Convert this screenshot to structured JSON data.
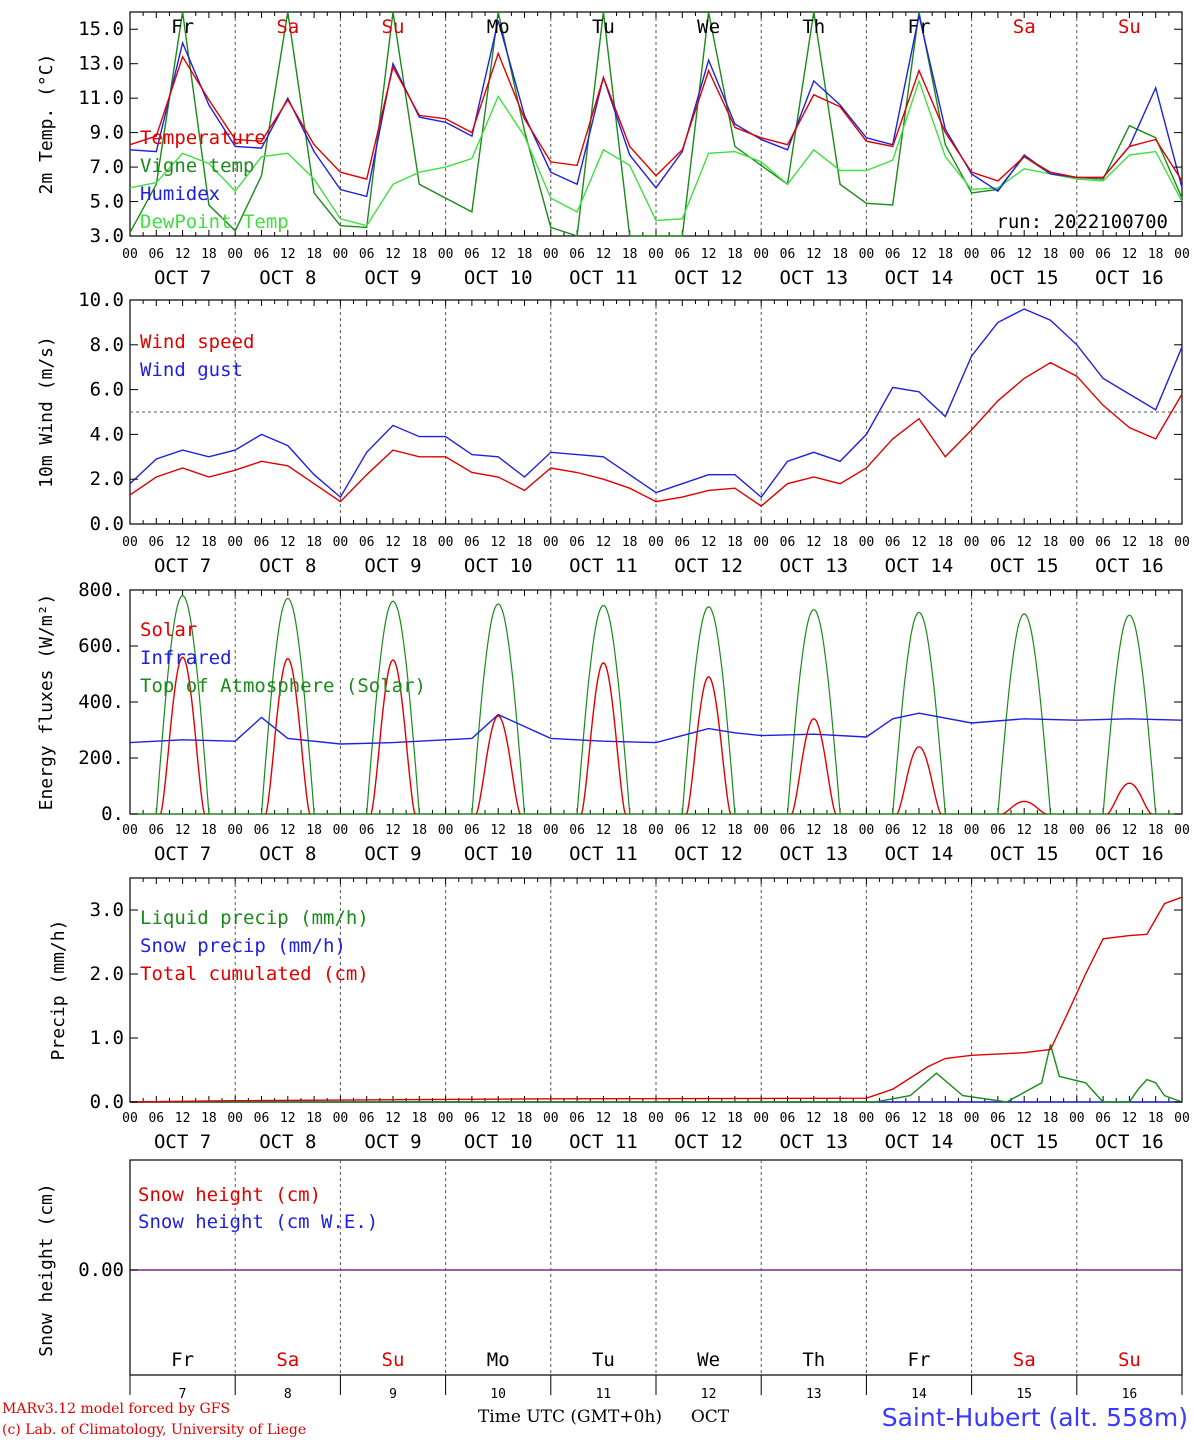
{
  "x_axis": {
    "hour_labels": [
      "00",
      "06",
      "12",
      "18"
    ],
    "month": "OCT",
    "days": [
      "7",
      "8",
      "9",
      "10",
      "11",
      "12",
      "13",
      "14",
      "15",
      "16"
    ],
    "weekdays": [
      {
        "label": "Fr",
        "color": "#000000"
      },
      {
        "label": "Sa",
        "color": "#e00000"
      },
      {
        "label": "Su",
        "color": "#e00000"
      },
      {
        "label": "Mo",
        "color": "#000000"
      },
      {
        "label": "Tu",
        "color": "#000000"
      },
      {
        "label": "We",
        "color": "#000000"
      },
      {
        "label": "Th",
        "color": "#000000"
      },
      {
        "label": "Fr",
        "color": "#000000"
      },
      {
        "label": "Sa",
        "color": "#e00000"
      },
      {
        "label": "Su",
        "color": "#e00000"
      }
    ],
    "title": "Time UTC (GMT+0h)",
    "month_bottom": "OCT"
  },
  "footer": {
    "model": "MARv3.12 model forced by GFS",
    "credit": "(c) Lab. of Climatology, University of Liege",
    "station": "Saint-Hubert (alt. 558m)"
  },
  "chart_data": [
    {
      "type": "line",
      "ylabel": "2m Temp. (°C)",
      "ylim": [
        3.0,
        16.0
      ],
      "yticks": [
        "3.0",
        "5.0",
        "7.0",
        "9.0",
        "11.0",
        "13.0",
        "15.0"
      ],
      "annotation": "run: 2022100700",
      "x_unit": "hours since OCT 7 00 UTC",
      "x": [
        0,
        6,
        12,
        18,
        24,
        30,
        36,
        42,
        48,
        54,
        60,
        66,
        72,
        78,
        84,
        90,
        96,
        102,
        108,
        114,
        120,
        126,
        132,
        138,
        144,
        150,
        156,
        162,
        168,
        174,
        180,
        186,
        192,
        198,
        204,
        210,
        216,
        222,
        228,
        234,
        240
      ],
      "series": [
        {
          "name": "Temperature",
          "color": "#e00000",
          "values": [
            8.3,
            8.8,
            13.4,
            10.9,
            8.6,
            8.5,
            10.9,
            8.3,
            6.7,
            6.3,
            12.8,
            10.0,
            9.8,
            9.0,
            13.6,
            9.8,
            7.3,
            7.1,
            12.2,
            8.2,
            6.5,
            8.0,
            12.6,
            9.3,
            8.7,
            8.3,
            11.2,
            10.5,
            8.5,
            8.2,
            12.6,
            9.0,
            6.7,
            6.2,
            7.6,
            6.7,
            6.4,
            6.4,
            8.2,
            8.6,
            6.2
          ]
        },
        {
          "name": "Vigne temp",
          "color": "#1a8a1a",
          "values": [
            3.2,
            6.0,
            16.5,
            4.8,
            3.3,
            6.5,
            16.5,
            5.5,
            3.6,
            3.5,
            16.5,
            6.0,
            5.2,
            4.4,
            16.5,
            9.1,
            3.5,
            2.8,
            16.5,
            3.0,
            2.7,
            2.7,
            16.5,
            8.2,
            7.1,
            6.0,
            16.0,
            6.0,
            4.9,
            4.8,
            16.5,
            8.3,
            5.5,
            5.7,
            7.6,
            6.6,
            6.4,
            6.3,
            9.4,
            8.7,
            5.2
          ]
        },
        {
          "name": "Humidex",
          "color": "#2020e0",
          "values": [
            8.0,
            7.9,
            14.2,
            10.6,
            8.2,
            8.1,
            11.0,
            7.9,
            5.7,
            5.3,
            13.0,
            9.9,
            9.6,
            8.8,
            15.5,
            10.0,
            6.7,
            6.0,
            12.2,
            7.7,
            5.8,
            7.9,
            13.2,
            9.5,
            8.6,
            8.0,
            12.0,
            10.6,
            8.7,
            8.3,
            15.8,
            9.2,
            6.6,
            5.6,
            7.7,
            6.6,
            6.4,
            6.4,
            8.2,
            11.6,
            5.8
          ]
        },
        {
          "name": "DewPoint Temp",
          "color": "#40e040",
          "values": [
            5.8,
            6.1,
            7.8,
            7.2,
            5.6,
            7.6,
            7.8,
            6.3,
            4.0,
            3.6,
            6.0,
            6.7,
            7.0,
            7.5,
            11.1,
            8.8,
            5.2,
            4.4,
            8.0,
            7.1,
            3.9,
            4.0,
            7.8,
            7.9,
            7.3,
            6.0,
            8.0,
            6.8,
            6.8,
            7.4,
            12.0,
            7.6,
            5.7,
            5.8,
            6.9,
            6.6,
            6.3,
            6.2,
            7.7,
            7.9,
            5.0
          ]
        }
      ]
    },
    {
      "type": "line",
      "ylabel": "10m Wind (m/s)",
      "ylim": [
        0.0,
        10.0
      ],
      "yticks": [
        "0.0",
        "2.0",
        "4.0",
        "6.0",
        "8.0",
        "10.0"
      ],
      "x_unit": "hours since OCT 7 00 UTC",
      "x": [
        0,
        6,
        12,
        18,
        24,
        30,
        36,
        42,
        48,
        54,
        60,
        66,
        72,
        78,
        84,
        90,
        96,
        102,
        108,
        114,
        120,
        126,
        132,
        138,
        144,
        150,
        156,
        162,
        168,
        174,
        180,
        186,
        192,
        198,
        204,
        210,
        216,
        222,
        228,
        234,
        240
      ],
      "series": [
        {
          "name": "Wind speed",
          "color": "#e00000",
          "values": [
            1.3,
            2.1,
            2.5,
            2.1,
            2.4,
            2.8,
            2.6,
            1.8,
            1.0,
            2.2,
            3.3,
            3.0,
            3.0,
            2.3,
            2.1,
            1.5,
            2.5,
            2.3,
            2.0,
            1.6,
            1.0,
            1.2,
            1.5,
            1.6,
            0.8,
            1.8,
            2.1,
            1.8,
            2.5,
            3.8,
            4.7,
            3.0,
            4.2,
            5.5,
            6.5,
            7.2,
            6.6,
            5.3,
            4.3,
            3.8,
            5.8
          ]
        },
        {
          "name": "Wind gust",
          "color": "#2020e0",
          "values": [
            1.8,
            2.9,
            3.3,
            3.0,
            3.3,
            4.0,
            3.5,
            2.2,
            1.2,
            3.2,
            4.4,
            3.9,
            3.9,
            3.1,
            3.0,
            2.1,
            3.2,
            3.1,
            3.0,
            2.2,
            1.4,
            1.8,
            2.2,
            2.2,
            1.2,
            2.8,
            3.2,
            2.8,
            4.0,
            6.1,
            5.9,
            4.8,
            7.5,
            9.0,
            9.6,
            9.1,
            8.0,
            6.5,
            5.8,
            5.1,
            7.9
          ]
        }
      ],
      "reference_line": 5.0
    },
    {
      "type": "line",
      "ylabel": "Energy fluxes (W/m²)",
      "ylim": [
        0,
        800
      ],
      "yticks": [
        "0.",
        "200.",
        "400.",
        "600.",
        "800."
      ],
      "x_unit": "hours since OCT 7 00 UTC",
      "solar_peaks": [
        560,
        555,
        550,
        350,
        540,
        490,
        340,
        240,
        45,
        110
      ],
      "toa_peaks": [
        780,
        770,
        760,
        750,
        745,
        740,
        730,
        720,
        715,
        710
      ],
      "infrared_x": [
        0,
        12,
        24,
        30,
        36,
        48,
        60,
        72,
        78,
        84,
        96,
        108,
        120,
        126,
        132,
        138,
        144,
        156,
        168,
        174,
        180,
        192,
        204,
        216,
        228,
        240
      ],
      "infrared_values": [
        255,
        265,
        260,
        345,
        270,
        250,
        255,
        265,
        270,
        355,
        270,
        260,
        255,
        280,
        305,
        290,
        280,
        285,
        275,
        340,
        360,
        325,
        340,
        335,
        340,
        335
      ],
      "series": [
        {
          "name": "Solar",
          "color": "#e00000"
        },
        {
          "name": "Infrared",
          "color": "#2020e0"
        },
        {
          "name": "Top of Atmosphere (Solar)",
          "color": "#1a8a1a"
        }
      ]
    },
    {
      "type": "line",
      "ylabel": "Precip (mm/h)",
      "ylim": [
        0.0,
        3.5
      ],
      "yticks": [
        "0.0",
        "1.0",
        "2.0",
        "3.0"
      ],
      "x_unit": "hours since OCT 7 00 UTC",
      "series": [
        {
          "name": "Liquid precip (mm/h)",
          "color": "#1a8a1a",
          "x": [
            0,
            170,
            178,
            184,
            190,
            200,
            208,
            210,
            212,
            218,
            222,
            228,
            230,
            232,
            234,
            236,
            240
          ],
          "values": [
            0,
            0,
            0.1,
            0.45,
            0.1,
            0,
            0.3,
            0.9,
            0.4,
            0.3,
            0,
            0,
            0.2,
            0.35,
            0.3,
            0.1,
            0
          ]
        },
        {
          "name": "Snow precip (mm/h)",
          "color": "#2020e0",
          "x": [
            0,
            240
          ],
          "values": [
            0,
            0
          ]
        },
        {
          "name": "Total cumulated (cm)",
          "color": "#e00000",
          "x": [
            0,
            24,
            96,
            168,
            174,
            182,
            186,
            192,
            204,
            210,
            214,
            218,
            222,
            228,
            232,
            236,
            240
          ],
          "values": [
            0,
            0.02,
            0.05,
            0.06,
            0.2,
            0.55,
            0.68,
            0.73,
            0.77,
            0.82,
            1.4,
            2.0,
            2.55,
            2.6,
            2.62,
            3.1,
            3.2
          ]
        }
      ]
    },
    {
      "type": "line",
      "ylabel": "Snow height (cm)",
      "yticks": [
        "0.00"
      ],
      "series": [
        {
          "name": "Snow height (cm)",
          "color": "#e00000",
          "values": [
            0,
            0
          ]
        },
        {
          "name": "Snow height (cm W.E.)",
          "color": "#2020e0",
          "values": [
            0,
            0
          ]
        }
      ]
    }
  ]
}
